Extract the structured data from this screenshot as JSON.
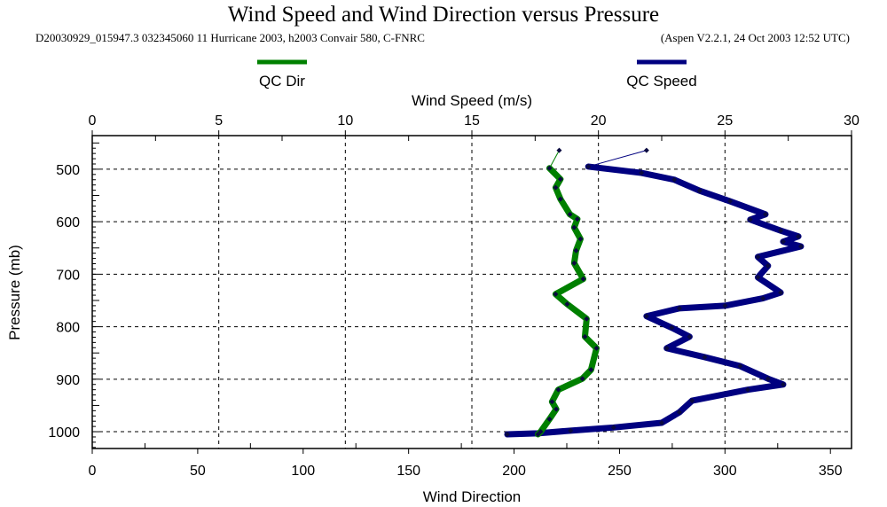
{
  "chart_data": {
    "type": "line",
    "title": "Wind Speed and Wind Direction versus Pressure",
    "subtitle_left": "D20030929_015947.3 032345060 11 Hurricane 2003, h2003 Convair 580, C-FNRC",
    "subtitle_right": "(Aspen V2.2.1, 24 Oct 2003  12:52 UTC)",
    "top_xlabel": "Wind Speed (m/s)",
    "bottom_xlabel": "Wind Direction",
    "ylabel": "Pressure (mb)",
    "speed_ticks": [
      "0",
      "5",
      "10",
      "15",
      "20",
      "25",
      "30"
    ],
    "dir_ticks": [
      "0",
      "50",
      "100",
      "150",
      "200",
      "250",
      "300",
      "350"
    ],
    "pressure_ticks": [
      "500",
      "600",
      "700",
      "800",
      "900",
      "1000"
    ],
    "speed_xlim": [
      0,
      30
    ],
    "dir_xlim": [
      0,
      360
    ],
    "ylim": [
      436,
      1032
    ],
    "grid": true,
    "legend": [
      {
        "name": "QC Dir",
        "color": "#008000"
      },
      {
        "name": "QC Speed",
        "color": "#000080"
      }
    ],
    "series": [
      {
        "name": "QC Speed",
        "axis": "speed",
        "color": "#000080",
        "points": [
          [
            21.9,
            464
          ],
          [
            19.6,
            495
          ],
          [
            21.7,
            507
          ],
          [
            23.0,
            520
          ],
          [
            24.0,
            541
          ],
          [
            25.2,
            561
          ],
          [
            26.6,
            586
          ],
          [
            26.0,
            596
          ],
          [
            27.2,
            617
          ],
          [
            27.9,
            628
          ],
          [
            27.3,
            638
          ],
          [
            28.0,
            647
          ],
          [
            26.3,
            667
          ],
          [
            26.7,
            684
          ],
          [
            26.3,
            706
          ],
          [
            27.2,
            735
          ],
          [
            26.5,
            746
          ],
          [
            25.0,
            760
          ],
          [
            23.2,
            765
          ],
          [
            21.9,
            780
          ],
          [
            22.9,
            802
          ],
          [
            23.6,
            819
          ],
          [
            22.7,
            841
          ],
          [
            24.2,
            858
          ],
          [
            25.6,
            875
          ],
          [
            26.7,
            899
          ],
          [
            27.3,
            910
          ],
          [
            25.9,
            920
          ],
          [
            23.7,
            941
          ],
          [
            23.2,
            963
          ],
          [
            22.5,
            983
          ],
          [
            20.6,
            992
          ],
          [
            18.9,
            998
          ],
          [
            17.6,
            1003
          ],
          [
            16.4,
            1005
          ]
        ]
      },
      {
        "name": "QC Dir",
        "axis": "dir",
        "color": "#008000",
        "points": [
          [
            221.4,
            464
          ],
          [
            216.8,
            498
          ],
          [
            222,
            519
          ],
          [
            219.7,
            535
          ],
          [
            222,
            557
          ],
          [
            226.5,
            586
          ],
          [
            230,
            595
          ],
          [
            228.5,
            611
          ],
          [
            231.5,
            633
          ],
          [
            229.4,
            655
          ],
          [
            228.5,
            679
          ],
          [
            232.8,
            709
          ],
          [
            219.7,
            738
          ],
          [
            225.2,
            757
          ],
          [
            234.4,
            785
          ],
          [
            233.6,
            819
          ],
          [
            239.1,
            841
          ],
          [
            236.5,
            882
          ],
          [
            232.4,
            899
          ],
          [
            221,
            920
          ],
          [
            218,
            943
          ],
          [
            220,
            957
          ],
          [
            216.8,
            976
          ],
          [
            212.6,
            1000
          ],
          [
            211.3,
            1005
          ]
        ]
      }
    ]
  }
}
